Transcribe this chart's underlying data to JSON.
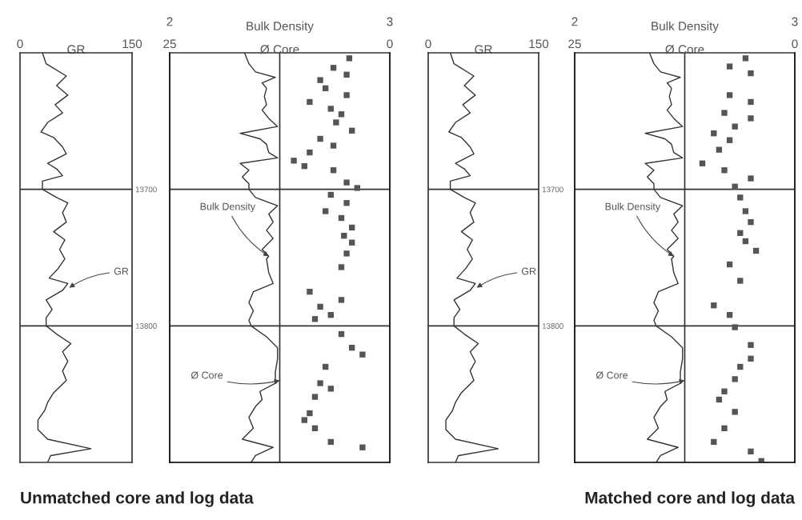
{
  "chart_data": [
    {
      "type": "line",
      "title": "Unmatched core and log data",
      "xlabel": "GR",
      "xlim": [
        0,
        150
      ],
      "xticks": [
        0,
        150
      ],
      "ylim": [
        13900,
        13600
      ],
      "yticks": [
        13700,
        13800
      ],
      "grid": "y",
      "marker": "none",
      "line_style": "solid",
      "series": [
        {
          "color": "#333333",
          "x": [
            30,
            35,
            62,
            49,
            64,
            47,
            57,
            37,
            28,
            45,
            57,
            62,
            37,
            49,
            57,
            30,
            30,
            49,
            64,
            57,
            62,
            45,
            60,
            53,
            60,
            51,
            39,
            64,
            57,
            35,
            43,
            35,
            35,
            49,
            68,
            57,
            64,
            57,
            62,
            45,
            37,
            33,
            24,
            24,
            37,
            95,
            41,
            37
          ],
          "values": [
            13600,
            13608,
            13617,
            13624,
            13631,
            13638,
            13644,
            13651,
            13658,
            13662,
            13669,
            13674,
            13681,
            13685,
            13690,
            13694,
            13700,
            13706,
            13710,
            13717,
            13724,
            13731,
            13737,
            13744,
            13751,
            13758,
            13765,
            13769,
            13774,
            13781,
            13788,
            13794,
            13800,
            13806,
            13813,
            13819,
            13826,
            13833,
            13840,
            13849,
            13856,
            13862,
            13869,
            13876,
            13883,
            13890,
            13895,
            13900
          ]
        }
      ],
      "annotations": [
        {
          "text": "GR",
          "x": 66,
          "y": 13772
        }
      ]
    },
    {
      "type": "line",
      "xlabel": "Bulk Density",
      "xlim": [
        2,
        3
      ],
      "xticks": [
        2,
        3
      ],
      "x2label": "Ø Core",
      "x2lim": [
        25,
        0
      ],
      "x2ticks": [
        25,
        0
      ],
      "ylim": [
        13900,
        13600
      ],
      "yticks": [
        13700,
        13800
      ],
      "tick_labels": "x",
      "grid": "y",
      "line_style": "solid",
      "ref_lines": [
        {
          "axis": "x",
          "value": 2.5,
          "color": "#333333"
        }
      ],
      "series": [
        {
          "color": "#333333",
          "marker": "none",
          "x": [
            2.34,
            2.36,
            2.39,
            2.48,
            2.42,
            2.44,
            2.43,
            2.44,
            2.42,
            2.45,
            2.49,
            2.32,
            2.41,
            2.44,
            2.45,
            2.49,
            2.32,
            2.36,
            2.33,
            2.36,
            2.36,
            2.39,
            2.49,
            2.45,
            2.47,
            2.44,
            2.47,
            2.42,
            2.45,
            2.44,
            2.45,
            2.47,
            2.38,
            2.36,
            2.38,
            2.36,
            2.37,
            2.44,
            2.49,
            2.49,
            2.48,
            2.48,
            2.41,
            2.42,
            2.39,
            2.36,
            2.38,
            2.33,
            2.47,
            2.39,
            2.37
          ],
          "values": [
            13600,
            13608,
            13614,
            13618,
            13622,
            13626,
            13632,
            13638,
            13642,
            13648,
            13654,
            13659,
            13663,
            13667,
            13673,
            13677,
            13681,
            13686,
            13691,
            13696,
            13700,
            13706,
            13712,
            13718,
            13724,
            13730,
            13736,
            13744,
            13749,
            13751,
            13761,
            13769,
            13775,
            13783,
            13789,
            13796,
            13800,
            13808,
            13816,
            13824,
            13834,
            13842,
            13848,
            13854,
            13859,
            13867,
            13875,
            13883,
            13889,
            13895,
            13900
          ]
        },
        {
          "type": "scatter",
          "axis": "x2",
          "marker": "square",
          "color": "#555555",
          "x": [
            4.6,
            6.4,
            4.9,
            7.9,
            7.3,
            4.9,
            9.1,
            6.7,
            5.5,
            6.1,
            4.3,
            7.9,
            6.4,
            9.1,
            10.9,
            9.7,
            6.4,
            4.9,
            3.7,
            6.7,
            4.9,
            7.3,
            5.5,
            4.3,
            5.2,
            4.3,
            4.9,
            5.5,
            9.1,
            5.5,
            7.9,
            6.7,
            8.5,
            5.5,
            4.3,
            3.1,
            7.3,
            7.9,
            6.7,
            8.5,
            9.1,
            9.7,
            8.5,
            6.7,
            3.1
          ],
          "values": [
            13604,
            13611,
            13616,
            13620,
            13626,
            13631,
            13636,
            13641,
            13645,
            13651,
            13657,
            13663,
            13668,
            13673,
            13679,
            13683,
            13686,
            13695,
            13699,
            13704,
            13710,
            13716,
            13721,
            13728,
            13734,
            13739,
            13747,
            13757,
            13775,
            13781,
            13786,
            13792,
            13795,
            13806,
            13816,
            13821,
            13830,
            13842,
            13846,
            13852,
            13864,
            13869,
            13875,
            13885,
            13889
          ]
        }
      ],
      "annotations": [
        {
          "text": "Bulk Density",
          "x": 2.45,
          "y": 13749
        },
        {
          "text": "Ø Core",
          "x": 2.5,
          "y": 13840
        }
      ]
    },
    {
      "type": "line",
      "xlabel": "GR",
      "xlim": [
        0,
        150
      ],
      "xticks": [
        0,
        150
      ],
      "ylim": [
        13900,
        13600
      ],
      "yticks": [
        13700,
        13800
      ],
      "grid": "y",
      "marker": "none",
      "line_style": "solid",
      "series": [
        {
          "color": "#333333",
          "x": [
            30,
            35,
            62,
            49,
            64,
            47,
            57,
            37,
            28,
            45,
            57,
            62,
            37,
            49,
            57,
            30,
            30,
            49,
            64,
            57,
            62,
            45,
            60,
            53,
            60,
            51,
            39,
            64,
            57,
            35,
            43,
            35,
            35,
            49,
            68,
            57,
            64,
            57,
            62,
            45,
            37,
            33,
            24,
            24,
            37,
            95,
            41,
            37
          ],
          "values": [
            13600,
            13608,
            13617,
            13624,
            13631,
            13638,
            13644,
            13651,
            13658,
            13662,
            13669,
            13674,
            13681,
            13685,
            13690,
            13694,
            13700,
            13706,
            13710,
            13717,
            13724,
            13731,
            13737,
            13744,
            13751,
            13758,
            13765,
            13769,
            13774,
            13781,
            13788,
            13794,
            13800,
            13806,
            13813,
            13819,
            13826,
            13833,
            13840,
            13849,
            13856,
            13862,
            13869,
            13876,
            13883,
            13890,
            13895,
            13900
          ]
        }
      ],
      "annotations": [
        {
          "text": "GR",
          "x": 66,
          "y": 13772
        }
      ]
    },
    {
      "type": "line",
      "title": "Matched core and log data",
      "xlabel": "Bulk Density",
      "xlim": [
        2,
        3
      ],
      "xticks": [
        2,
        3
      ],
      "x2label": "Ø Core",
      "x2lim": [
        25,
        0
      ],
      "x2ticks": [
        25,
        0
      ],
      "ylim": [
        13900,
        13600
      ],
      "yticks": [
        13700,
        13800
      ],
      "tick_labels": "x",
      "grid": "y",
      "line_style": "solid",
      "ref_lines": [
        {
          "axis": "x",
          "value": 2.5,
          "color": "#333333"
        }
      ],
      "series": [
        {
          "color": "#333333",
          "marker": "none",
          "x": [
            2.34,
            2.36,
            2.39,
            2.48,
            2.42,
            2.44,
            2.43,
            2.44,
            2.42,
            2.45,
            2.49,
            2.32,
            2.41,
            2.44,
            2.45,
            2.49,
            2.32,
            2.36,
            2.33,
            2.36,
            2.36,
            2.39,
            2.49,
            2.45,
            2.47,
            2.44,
            2.47,
            2.42,
            2.45,
            2.44,
            2.45,
            2.47,
            2.38,
            2.36,
            2.38,
            2.36,
            2.37,
            2.44,
            2.49,
            2.49,
            2.48,
            2.48,
            2.41,
            2.42,
            2.39,
            2.36,
            2.38,
            2.33,
            2.47,
            2.39,
            2.37
          ],
          "values": [
            13600,
            13608,
            13614,
            13618,
            13622,
            13626,
            13632,
            13638,
            13642,
            13648,
            13654,
            13659,
            13663,
            13667,
            13673,
            13677,
            13681,
            13686,
            13691,
            13696,
            13700,
            13706,
            13712,
            13718,
            13724,
            13730,
            13736,
            13744,
            13749,
            13751,
            13761,
            13769,
            13775,
            13783,
            13789,
            13796,
            13800,
            13808,
            13816,
            13824,
            13834,
            13842,
            13848,
            13854,
            13859,
            13867,
            13875,
            13883,
            13889,
            13895,
            13900
          ]
        },
        {
          "type": "scatter",
          "axis": "x2",
          "marker": "square",
          "color": "#555555",
          "x": [
            5.6,
            7.4,
            5.0,
            7.4,
            5.0,
            8.0,
            5.0,
            6.8,
            9.2,
            7.4,
            8.6,
            10.5,
            8.0,
            5.0,
            6.8,
            6.2,
            5.6,
            5.0,
            6.2,
            5.6,
            4.4,
            7.4,
            6.2,
            9.2,
            7.4,
            6.8,
            5.0,
            5.0,
            6.2,
            6.8,
            8.0,
            8.6,
            6.8,
            8.0,
            9.2,
            5.0,
            3.8
          ],
          "values": [
            13604,
            13610,
            13615,
            13631,
            13636,
            13644,
            13648,
            13654,
            13659,
            13664,
            13671,
            13681,
            13686,
            13692,
            13698,
            13706,
            13716,
            13724,
            13732,
            13738,
            13745,
            13755,
            13767,
            13785,
            13792,
            13801,
            13814,
            13824,
            13830,
            13839,
            13848,
            13854,
            13863,
            13875,
            13885,
            13892,
            13899
          ]
        }
      ],
      "annotations": [
        {
          "text": "Bulk Density",
          "x": 2.45,
          "y": 13749
        },
        {
          "text": "Ø Core",
          "x": 2.5,
          "y": 13840
        }
      ]
    }
  ]
}
